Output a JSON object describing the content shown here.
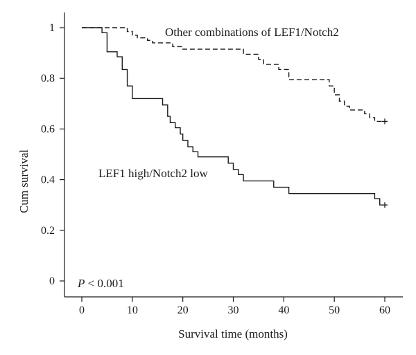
{
  "chart_data": {
    "type": "line",
    "subtype": "kaplan-meier step",
    "xlabel": "Survival time (months)",
    "ylabel": "Cum survival",
    "xlim": [
      0,
      60
    ],
    "ylim": [
      0,
      1
    ],
    "xticks": [
      "0",
      "10",
      "20",
      "30",
      "40",
      "50",
      "60"
    ],
    "yticks": [
      "0",
      "0.2",
      "0.4",
      "0.6",
      "0.8",
      "1"
    ],
    "grid": false,
    "annotations": {
      "p_value_symbol": "P",
      "p_value_text": " < 0.001"
    },
    "series": [
      {
        "name": "LEF1 high/Notch2 low",
        "style": "solid",
        "color": "#1a1a1a",
        "censored": [
          [
            60,
            0.3
          ]
        ],
        "steps": [
          [
            0,
            1.0
          ],
          [
            4,
            0.98
          ],
          [
            5,
            0.905
          ],
          [
            7,
            0.885
          ],
          [
            8,
            0.835
          ],
          [
            9,
            0.77
          ],
          [
            10,
            0.72
          ],
          [
            16,
            0.695
          ],
          [
            17,
            0.65
          ],
          [
            17.5,
            0.625
          ],
          [
            18.5,
            0.605
          ],
          [
            19.5,
            0.58
          ],
          [
            20,
            0.555
          ],
          [
            21,
            0.53
          ],
          [
            22,
            0.51
          ],
          [
            23,
            0.49
          ],
          [
            29,
            0.465
          ],
          [
            30,
            0.44
          ],
          [
            31,
            0.42
          ],
          [
            32,
            0.395
          ],
          [
            38,
            0.37
          ],
          [
            41,
            0.345
          ],
          [
            58,
            0.325
          ],
          [
            59,
            0.3
          ]
        ]
      },
      {
        "name": "Other combinations of LEF1/Notch2",
        "style": "dashed",
        "color": "#1a1a1a",
        "censored": [
          [
            60,
            0.63
          ]
        ],
        "steps": [
          [
            0,
            1.0
          ],
          [
            9,
            0.985
          ],
          [
            10,
            0.97
          ],
          [
            11,
            0.96
          ],
          [
            13,
            0.95
          ],
          [
            14,
            0.94
          ],
          [
            18,
            0.925
          ],
          [
            20,
            0.915
          ],
          [
            32,
            0.895
          ],
          [
            35,
            0.875
          ],
          [
            36,
            0.855
          ],
          [
            39,
            0.835
          ],
          [
            41,
            0.795
          ],
          [
            49,
            0.77
          ],
          [
            50,
            0.735
          ],
          [
            51,
            0.71
          ],
          [
            52,
            0.69
          ],
          [
            53,
            0.675
          ],
          [
            56,
            0.66
          ],
          [
            57,
            0.645
          ],
          [
            58,
            0.63
          ]
        ]
      }
    ]
  }
}
